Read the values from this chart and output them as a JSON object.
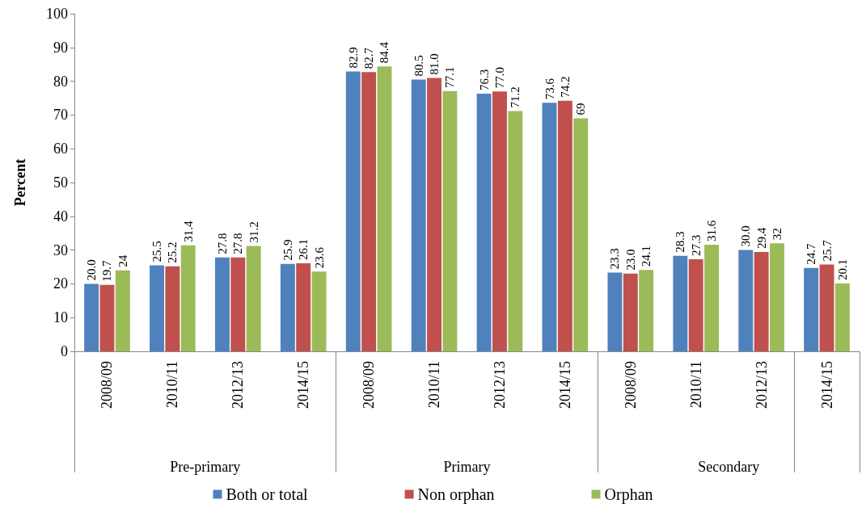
{
  "chart_data": {
    "type": "bar",
    "ylabel": "Percent",
    "categories": [
      "2008/09",
      "2010/11",
      "2012/13",
      "2014/15",
      "2008/09",
      "2010/11",
      "2012/13",
      "2014/15",
      "2008/09",
      "2010/11",
      "2012/13",
      "2014/15"
    ],
    "annotations": [
      "Pre-primary",
      "Primary",
      "Secondary"
    ],
    "series": [
      {
        "name": "Both or total",
        "color": "#4f81bd",
        "values": [
          20.0,
          25.5,
          27.8,
          25.9,
          82.9,
          80.5,
          76.3,
          73.6,
          23.3,
          28.3,
          30.0,
          24.7
        ],
        "value_labels": [
          "20.0",
          "25.5",
          "27.8",
          "25.9",
          "82.9",
          "80.5",
          "76.3",
          "73.6",
          "23.3",
          "28.3",
          "30.0",
          "24.7"
        ]
      },
      {
        "name": "Non orphan",
        "color": "#c0504d",
        "values": [
          19.7,
          25.2,
          27.8,
          26.1,
          82.7,
          81.0,
          77.0,
          74.2,
          23.0,
          27.3,
          29.4,
          25.7
        ],
        "value_labels": [
          "19.7",
          "25.2",
          "27.8",
          "26.1",
          "82.7",
          "81.0",
          "77.0",
          "74.2",
          "23.0",
          "27.3",
          "29.4",
          "25.7"
        ]
      },
      {
        "name": "Orphan",
        "color": "#9bbb59",
        "values": [
          24,
          31.4,
          31.2,
          23.6,
          84.4,
          77.1,
          71.2,
          69,
          24.1,
          31.6,
          32,
          20.1
        ],
        "value_labels": [
          "24",
          "31.4",
          "31.2",
          "23.6",
          "84.4",
          "77.1",
          "71.2",
          "69",
          "24.1",
          "31.6",
          "32",
          "20.1"
        ]
      }
    ],
    "ylim": [
      0,
      100
    ],
    "yticks": [
      0,
      10,
      20,
      30,
      40,
      50,
      60,
      70,
      80,
      90,
      100
    ],
    "grid": false,
    "legend": "bottom"
  }
}
